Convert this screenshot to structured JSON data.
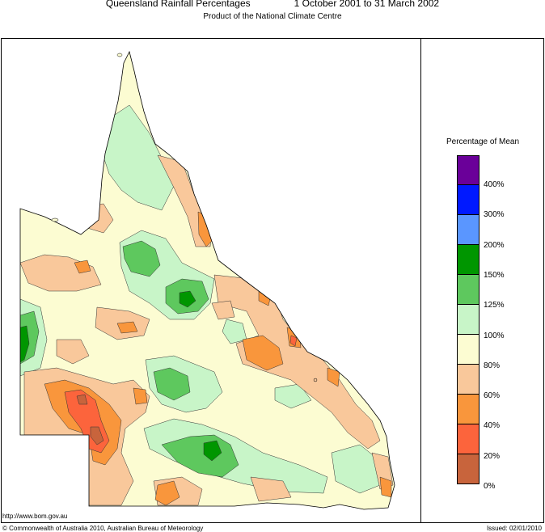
{
  "header": {
    "title": "Queensland Rainfall Percentages",
    "date_range": "1 October 2001 to 31 March 2002",
    "subtitle": "Product of the National Climate Centre"
  },
  "legend": {
    "title": "Percentage of Mean",
    "bands": [
      {
        "label": "400%",
        "color": "#6a0099"
      },
      {
        "label": "300%",
        "color": "#0019ff"
      },
      {
        "label": "200%",
        "color": "#5a96ff"
      },
      {
        "label": "150%",
        "color": "#009600"
      },
      {
        "label": "125%",
        "color": "#5ec85e"
      },
      {
        "label": "100%",
        "color": "#c8f5c8"
      },
      {
        "label": "80%",
        "color": "#fcfcd2"
      },
      {
        "label": "60%",
        "color": "#f9c89b"
      },
      {
        "label": "40%",
        "color": "#f9963c"
      },
      {
        "label": "20%",
        "color": "#fc643c"
      },
      {
        "label": "0%",
        "color": "#c8643c"
      }
    ]
  },
  "footer": {
    "url": "http://www.bom.gov.au",
    "copyright": "© Commonwealth of Australia 2010, Australian Bureau of Meteorology",
    "issued": "Issued: 02/01/2010"
  }
}
